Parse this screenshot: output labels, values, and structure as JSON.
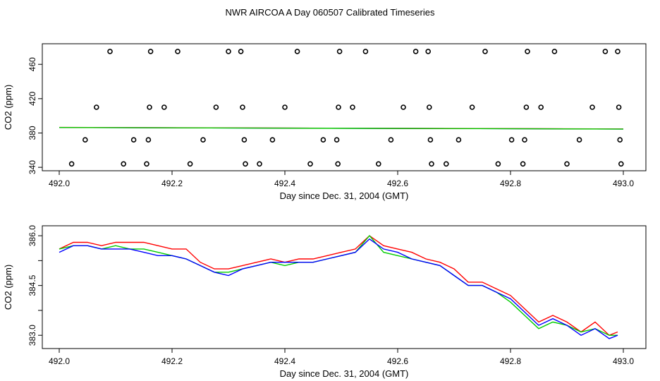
{
  "title": "NWR AIRCOA A  Day 060507  Calibrated Timeseries",
  "chart_data": [
    {
      "type": "scatter",
      "xlabel": "Day since Dec. 31, 2004 (GMT)",
      "ylabel": "CO2 (ppm)",
      "xlim": [
        491.97,
        493.04
      ],
      "ylim": [
        336,
        484
      ],
      "xticks": [
        {
          "v": 492.0,
          "label": "492.0"
        },
        {
          "v": 492.2,
          "label": "492.2"
        },
        {
          "v": 492.4,
          "label": "492.4"
        },
        {
          "v": 492.6,
          "label": "492.6"
        },
        {
          "v": 492.8,
          "label": "492.8"
        },
        {
          "v": 493.0,
          "label": "493.0"
        }
      ],
      "yticks": [
        {
          "v": 340,
          "label": "340"
        },
        {
          "v": 380,
          "label": "380"
        },
        {
          "v": 420,
          "label": "420"
        },
        {
          "v": 460,
          "label": "460"
        }
      ],
      "points": [
        [
          492.022,
          344
        ],
        [
          492.046,
          372
        ],
        [
          492.066,
          410
        ],
        [
          492.09,
          475
        ],
        [
          492.114,
          344
        ],
        [
          492.132,
          372
        ],
        [
          492.155,
          344
        ],
        [
          492.158,
          372
        ],
        [
          492.16,
          410
        ],
        [
          492.162,
          475
        ],
        [
          492.186,
          410
        ],
        [
          492.21,
          475
        ],
        [
          492.232,
          344
        ],
        [
          492.255,
          372
        ],
        [
          492.278,
          410
        ],
        [
          492.3,
          475
        ],
        [
          492.322,
          475
        ],
        [
          492.325,
          410
        ],
        [
          492.328,
          372
        ],
        [
          492.33,
          344
        ],
        [
          492.355,
          344
        ],
        [
          492.378,
          372
        ],
        [
          492.4,
          410
        ],
        [
          492.422,
          475
        ],
        [
          492.445,
          344
        ],
        [
          492.468,
          372
        ],
        [
          492.492,
          372
        ],
        [
          492.494,
          344
        ],
        [
          492.495,
          410
        ],
        [
          492.497,
          475
        ],
        [
          492.52,
          410
        ],
        [
          492.543,
          475
        ],
        [
          492.566,
          344
        ],
        [
          492.588,
          372
        ],
        [
          492.61,
          410
        ],
        [
          492.632,
          475
        ],
        [
          492.654,
          475
        ],
        [
          492.656,
          410
        ],
        [
          492.658,
          372
        ],
        [
          492.66,
          344
        ],
        [
          492.686,
          344
        ],
        [
          492.708,
          372
        ],
        [
          492.732,
          410
        ],
        [
          492.755,
          475
        ],
        [
          492.778,
          344
        ],
        [
          492.802,
          372
        ],
        [
          492.822,
          344
        ],
        [
          492.825,
          372
        ],
        [
          492.828,
          410
        ],
        [
          492.83,
          475
        ],
        [
          492.854,
          410
        ],
        [
          492.878,
          475
        ],
        [
          492.9,
          344
        ],
        [
          492.922,
          372
        ],
        [
          492.945,
          410
        ],
        [
          492.968,
          475
        ],
        [
          492.99,
          475
        ],
        [
          492.992,
          410
        ],
        [
          492.994,
          372
        ],
        [
          492.996,
          344
        ]
      ],
      "series": [
        {
          "color": "#0000ff",
          "x": [
            492.0,
            493.0
          ],
          "values": [
            386.4,
            384.6
          ]
        },
        {
          "color": "#ff0000",
          "x": [
            492.0,
            493.0
          ],
          "values": [
            386.5,
            384.7
          ]
        },
        {
          "color": "#00cc00",
          "x": [
            492.0,
            493.0
          ],
          "values": [
            386.4,
            384.6
          ]
        }
      ]
    },
    {
      "type": "line",
      "xlabel": "Day since Dec. 31, 2004 (GMT)",
      "ylabel": "CO2 (ppm)",
      "xlim": [
        491.97,
        493.04
      ],
      "ylim": [
        382.6,
        386.3
      ],
      "xticks": [
        {
          "v": 492.0,
          "label": "492.0"
        },
        {
          "v": 492.2,
          "label": "492.2"
        },
        {
          "v": 492.4,
          "label": "492.4"
        },
        {
          "v": 492.6,
          "label": "492.6"
        },
        {
          "v": 492.8,
          "label": "492.8"
        },
        {
          "v": 493.0,
          "label": "493.0"
        }
      ],
      "yticks": [
        {
          "v": 383.0,
          "label": "383.0"
        },
        {
          "v": 383.75,
          "label": ""
        },
        {
          "v": 384.5,
          "label": "384.5"
        },
        {
          "v": 385.25,
          "label": ""
        },
        {
          "v": 386.0,
          "label": "386.0"
        }
      ],
      "series": [
        {
          "color": "#ff0000",
          "x": [
            492.0,
            492.025,
            492.05,
            492.075,
            492.1,
            492.125,
            492.15,
            492.175,
            492.2,
            492.225,
            492.25,
            492.275,
            492.3,
            492.325,
            492.35,
            492.375,
            492.4,
            492.425,
            492.45,
            492.475,
            492.5,
            492.525,
            492.55,
            492.575,
            492.6,
            492.625,
            492.65,
            492.675,
            492.7,
            492.725,
            492.75,
            492.775,
            492.8,
            492.825,
            492.85,
            492.875,
            492.9,
            492.925,
            492.95,
            492.975,
            492.99
          ],
          "values": [
            385.6,
            385.8,
            385.8,
            385.7,
            385.8,
            385.8,
            385.8,
            385.7,
            385.6,
            385.6,
            385.2,
            385.0,
            385.0,
            385.1,
            385.2,
            385.3,
            385.2,
            385.3,
            385.3,
            385.4,
            385.5,
            385.6,
            386.0,
            385.7,
            385.6,
            385.5,
            385.3,
            385.2,
            385.0,
            384.6,
            384.6,
            384.4,
            384.2,
            383.8,
            383.4,
            383.6,
            383.4,
            383.1,
            383.4,
            383.0,
            383.1
          ]
        },
        {
          "color": "#00cc00",
          "x": [
            492.0,
            492.025,
            492.05,
            492.075,
            492.1,
            492.125,
            492.15,
            492.175,
            492.2,
            492.225,
            492.25,
            492.275,
            492.3,
            492.325,
            492.35,
            492.375,
            492.4,
            492.425,
            492.45,
            492.475,
            492.5,
            492.525,
            492.55,
            492.575,
            492.6,
            492.625,
            492.65,
            492.675,
            492.7,
            492.725,
            492.75,
            492.775,
            492.8,
            492.825,
            492.85,
            492.875,
            492.9,
            492.925,
            492.95,
            492.975,
            492.99
          ],
          "values": [
            385.6,
            385.7,
            385.7,
            385.6,
            385.7,
            385.6,
            385.6,
            385.5,
            385.4,
            385.3,
            385.1,
            384.9,
            384.9,
            385.0,
            385.1,
            385.2,
            385.1,
            385.2,
            385.2,
            385.3,
            385.4,
            385.5,
            386.0,
            385.5,
            385.4,
            385.3,
            385.2,
            385.1,
            384.8,
            384.5,
            384.5,
            384.3,
            384.0,
            383.6,
            383.2,
            383.4,
            383.3,
            383.1,
            383.2,
            383.0,
            383.0
          ]
        },
        {
          "color": "#0000ff",
          "x": [
            492.0,
            492.025,
            492.05,
            492.075,
            492.1,
            492.125,
            492.15,
            492.175,
            492.2,
            492.225,
            492.25,
            492.275,
            492.3,
            492.325,
            492.35,
            492.375,
            492.4,
            492.425,
            492.45,
            492.475,
            492.5,
            492.525,
            492.55,
            492.575,
            492.6,
            492.625,
            492.65,
            492.675,
            492.7,
            492.725,
            492.75,
            492.775,
            492.8,
            492.825,
            492.85,
            492.875,
            492.9,
            492.925,
            492.95,
            492.975,
            492.99
          ],
          "values": [
            385.5,
            385.7,
            385.7,
            385.6,
            385.6,
            385.6,
            385.5,
            385.4,
            385.4,
            385.3,
            385.1,
            384.9,
            384.8,
            385.0,
            385.1,
            385.2,
            385.2,
            385.2,
            385.2,
            385.3,
            385.4,
            385.5,
            385.9,
            385.6,
            385.5,
            385.3,
            385.2,
            385.1,
            384.8,
            384.5,
            384.5,
            384.3,
            384.1,
            383.7,
            383.3,
            383.5,
            383.3,
            383.0,
            383.2,
            382.9,
            383.0
          ]
        }
      ]
    }
  ]
}
